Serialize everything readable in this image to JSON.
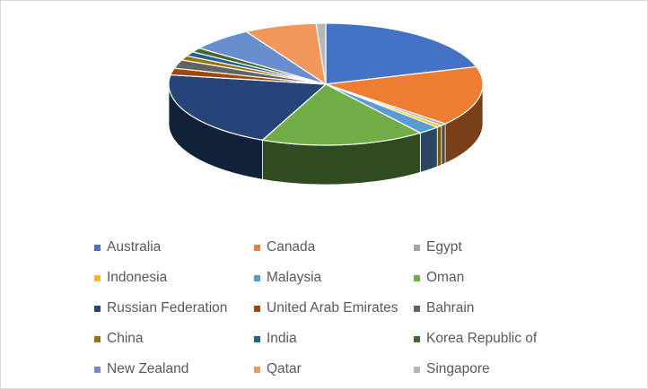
{
  "chart_data": {
    "type": "pie",
    "style": "3d",
    "title": "",
    "legend_position": "bottom",
    "categories": [
      "Australia",
      "Canada",
      "Egypt",
      "Indonesia",
      "Malaysia",
      "Oman",
      "Russian Federation",
      "United Arab Emirates",
      "Bahrain",
      "China",
      "India",
      "Korea Republic of",
      "New Zealand",
      "Qatar",
      "Singapore"
    ],
    "values": [
      20.5,
      16.0,
      0.6,
      0.6,
      2.3,
      17.0,
      21.0,
      1.8,
      2.3,
      1.2,
      1.2,
      1.2,
      6.5,
      7.5,
      1.0
    ],
    "colors": [
      "#4472c4",
      "#ed7d31",
      "#a5a5a5",
      "#ffc000",
      "#5b9bd5",
      "#70ad47",
      "#264478",
      "#9e480e",
      "#636363",
      "#997300",
      "#255e91",
      "#43682b",
      "#698ed0",
      "#f1975a",
      "#b7b7b7"
    ]
  }
}
